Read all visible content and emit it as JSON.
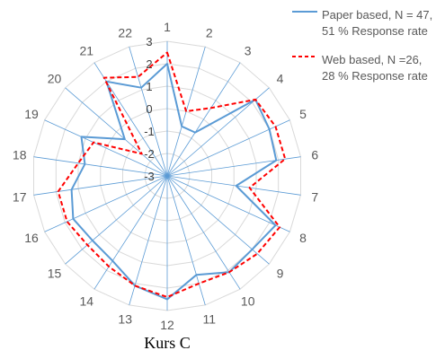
{
  "chart_data": {
    "type": "radar",
    "title": "Kurs C",
    "categories": [
      "1",
      "2",
      "3",
      "4",
      "5",
      "6",
      "7",
      "8",
      "9",
      "10",
      "11",
      "12",
      "13",
      "14",
      "15",
      "16",
      "17",
      "18",
      "19",
      "20",
      "21",
      "22"
    ],
    "rlim": [
      -3,
      3
    ],
    "r_ticks": [
      "-3",
      "-2",
      "-1",
      "0",
      "1",
      "2",
      "3"
    ],
    "grid": true,
    "legend_position": "top-right",
    "series": [
      {
        "name": "Paper based, N = 47, 51 % Response rate",
        "name_lines": [
          "Paper based, N = 47,",
          "51 % Response rate"
        ],
        "style": "solid",
        "color": "#5b9bd5",
        "values": [
          2.0,
          -0.7,
          -0.7,
          2.2,
          2.0,
          1.9,
          0.1,
          2.3,
          2.0,
          2.1,
          1.6,
          2.5,
          2.1,
          1.5,
          1.4,
          1.6,
          1.3,
          0.7,
          1.2,
          -0.5,
          2.0,
          1.1
        ]
      },
      {
        "name": "Web based, N =26, 28 % Response rate",
        "name_lines": [
          "Web based, N =26,",
          "28 % Response rate"
        ],
        "style": "dashed",
        "color": "#ff0000",
        "values": [
          2.5,
          0.0,
          0.6,
          2.2,
          2.3,
          2.3,
          0.7,
          2.5,
          2.3,
          2.1,
          2.0,
          2.4,
          2.1,
          1.8,
          1.7,
          1.9,
          1.9,
          1.0,
          0.6,
          -1.5,
          2.2,
          1.6
        ]
      }
    ],
    "xlabel": "",
    "ylabel": ""
  }
}
